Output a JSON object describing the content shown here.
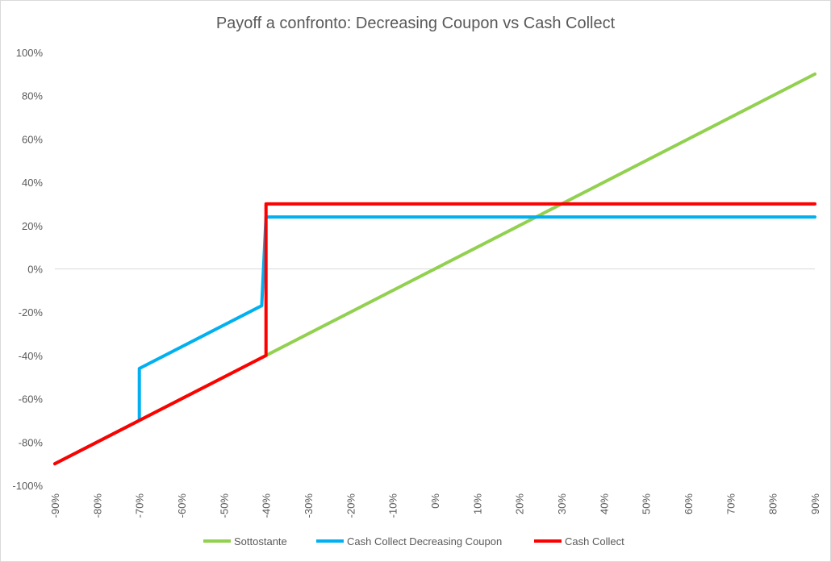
{
  "chart_data": {
    "type": "line",
    "title": "Payoff a confronto: Decreasing Coupon vs Cash Collect",
    "xlabel": "",
    "ylabel": "",
    "xlim": [
      -90,
      90
    ],
    "ylim": [
      -100,
      100
    ],
    "x_ticks": [
      "-90%",
      "-80%",
      "-70%",
      "-60%",
      "-50%",
      "-40%",
      "-30%",
      "-20%",
      "-10%",
      "0%",
      "10%",
      "20%",
      "30%",
      "40%",
      "50%",
      "60%",
      "70%",
      "80%",
      "90%"
    ],
    "y_ticks": [
      "100%",
      "80%",
      "60%",
      "40%",
      "20%",
      "0%",
      "-20%",
      "-40%",
      "-60%",
      "-80%",
      "-100%"
    ],
    "grid": "none",
    "legend": "bottom",
    "series": [
      {
        "name": "Sottostante",
        "color": "#92d050",
        "points": [
          [
            -90,
            -90
          ],
          [
            90,
            90
          ]
        ]
      },
      {
        "name": "Cash Collect Decreasing Coupon",
        "color": "#00b0f0",
        "points": [
          [
            -90,
            -90
          ],
          [
            -70,
            -70
          ],
          [
            -70,
            -46
          ],
          [
            -41,
            -17
          ],
          [
            -40,
            24
          ],
          [
            90,
            24
          ]
        ]
      },
      {
        "name": "Cash Collect",
        "color": "#ff0000",
        "points": [
          [
            -90,
            -90
          ],
          [
            -40,
            -40
          ],
          [
            -40,
            30
          ],
          [
            90,
            30
          ]
        ]
      }
    ]
  }
}
